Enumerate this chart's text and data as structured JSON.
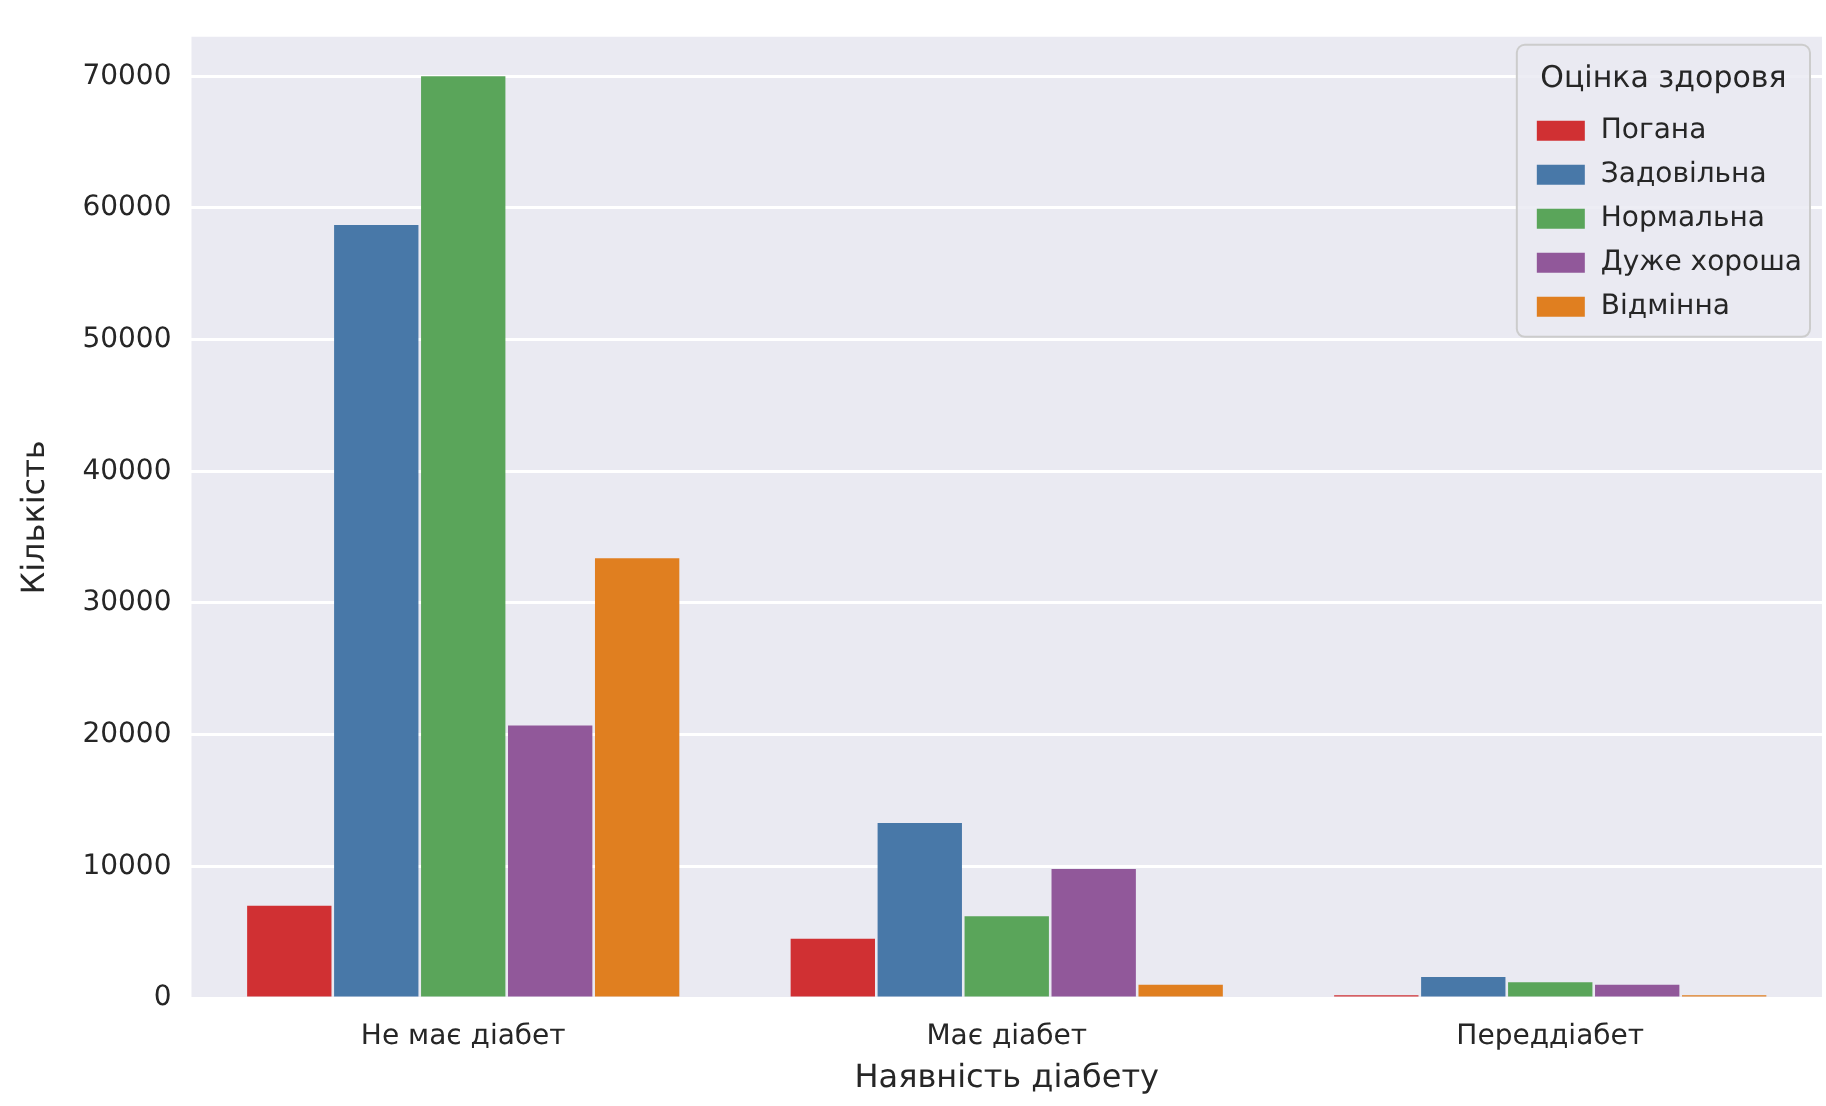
{
  "chart_data": {
    "type": "bar",
    "xlabel": "Наявність діабету",
    "ylabel": "Кількість",
    "legend_title": "Оцінка здоровя",
    "categories": [
      "Не має діабет",
      "Має діабет",
      "Переддіабет"
    ],
    "series": [
      {
        "name": "Погана",
        "color": "#d03033",
        "values": [
          7000,
          4500,
          200
        ]
      },
      {
        "name": "Задовільна",
        "color": "#4878a8",
        "values": [
          58700,
          13300,
          1600
        ]
      },
      {
        "name": "Нормальна",
        "color": "#5aa55a",
        "values": [
          70000,
          6200,
          1200
        ]
      },
      {
        "name": "Дуже хороша",
        "color": "#91589a",
        "values": [
          20700,
          9800,
          1000
        ]
      },
      {
        "name": "Відмінна",
        "color": "#e07f20",
        "values": [
          33400,
          1000,
          200
        ]
      }
    ],
    "ylim": [
      0,
      73000
    ],
    "yticks": [
      0,
      10000,
      20000,
      30000,
      40000,
      50000,
      60000,
      70000
    ],
    "grid": "y",
    "legend": "top right"
  }
}
